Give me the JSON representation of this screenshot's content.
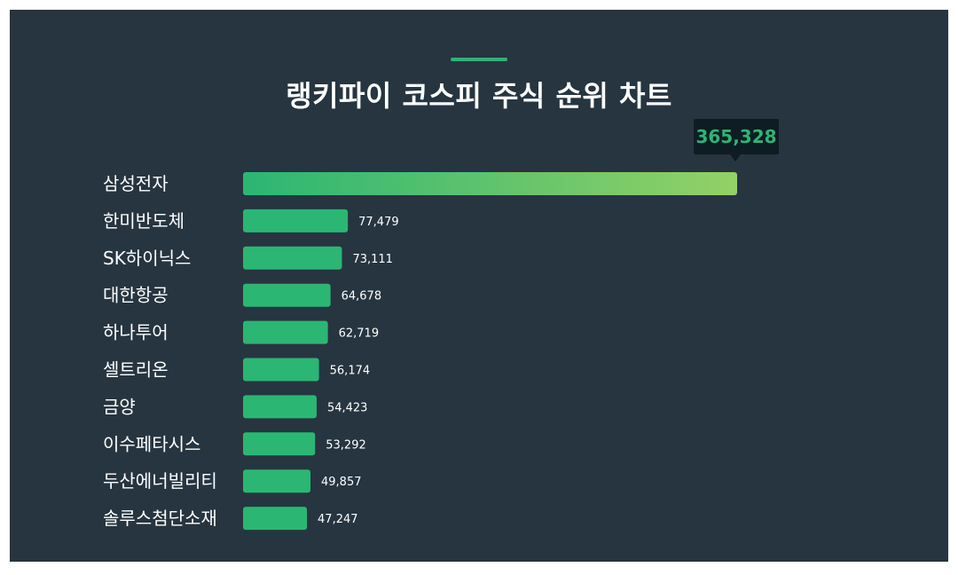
{
  "title": "랭키파이 코스피 주식 순위 차트",
  "colors": {
    "background": "#263540",
    "bar": "#2bb673",
    "top_bar_gradient_start": "#2bb673",
    "top_bar_gradient_end": "#93d166",
    "tooltip_bg": "#0f1c24",
    "tooltip_text": "#2bb673",
    "text": "#ffffff"
  },
  "chart_data": {
    "type": "bar",
    "orientation": "horizontal",
    "title": "랭키파이 코스피 주식 순위 차트",
    "categories": [
      "삼성전자",
      "한미반도체",
      "SK하이닉스",
      "대한항공",
      "하나투어",
      "셀트리온",
      "금양",
      "이수페타시스",
      "두산에너빌리티",
      "솔루스첨단소재"
    ],
    "values": [
      365328,
      77479,
      73111,
      64678,
      62719,
      56174,
      54423,
      53292,
      49857,
      47247
    ],
    "value_labels": [
      "365,328",
      "77,479",
      "73,111",
      "64,678",
      "62,719",
      "56,174",
      "54,423",
      "53,292",
      "49,857",
      "47,247"
    ],
    "xlabel": "",
    "ylabel": "",
    "grid": false,
    "legend": "none"
  }
}
